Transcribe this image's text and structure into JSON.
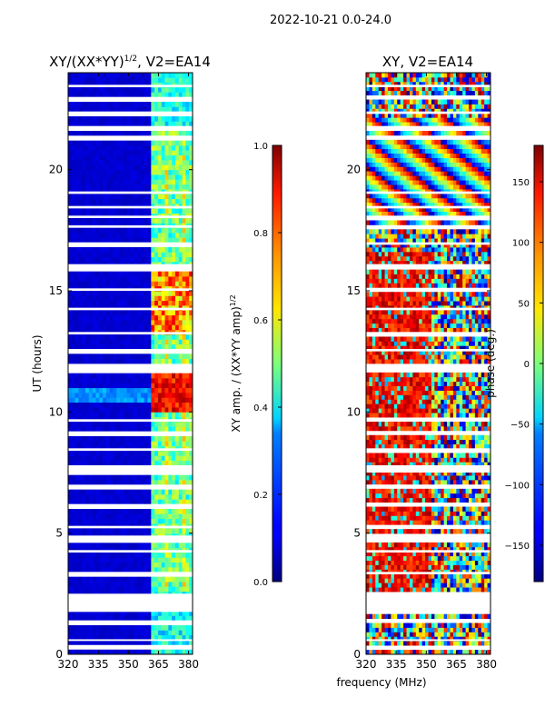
{
  "suptitle": "2022-10-21 0.0-24.0",
  "shared_xlabel": "frequency (MHz)",
  "chart_data": [
    {
      "type": "heatmap",
      "title": "XY/(XX*YY)",
      "title_sup": "1/2",
      "title_suffix": ", V2=EA14",
      "xlabel": "",
      "ylabel": "UT (hours)",
      "xlim": [
        320,
        382
      ],
      "ylim": [
        0,
        24
      ],
      "xticks": [
        320,
        335,
        350,
        365,
        380
      ],
      "yticks": [
        0,
        5,
        10,
        15,
        20
      ],
      "colorbar": {
        "label": "XY amp. / (XX*YY amp)",
        "label_sup": "1/2",
        "range": [
          0.0,
          1.0
        ],
        "ticks": [
          "0.0",
          "0.2",
          "0.4",
          "0.6",
          "0.8",
          "1.0"
        ],
        "colormap": "jet"
      }
    },
    {
      "type": "heatmap",
      "title": "XY, V2=EA14",
      "xlabel": "frequency (MHz)",
      "ylabel": "",
      "xlim": [
        320,
        382
      ],
      "ylim": [
        0,
        24
      ],
      "xticks": [
        320,
        335,
        350,
        365,
        380
      ],
      "yticks": [
        0,
        5,
        10,
        15,
        20
      ],
      "colorbar": {
        "label": "phase (deg.)",
        "range": [
          -180,
          180
        ],
        "ticks": [
          "150",
          "100",
          "50",
          "0",
          "−50",
          "−100",
          "−150"
        ],
        "colormap": "jet"
      }
    }
  ]
}
